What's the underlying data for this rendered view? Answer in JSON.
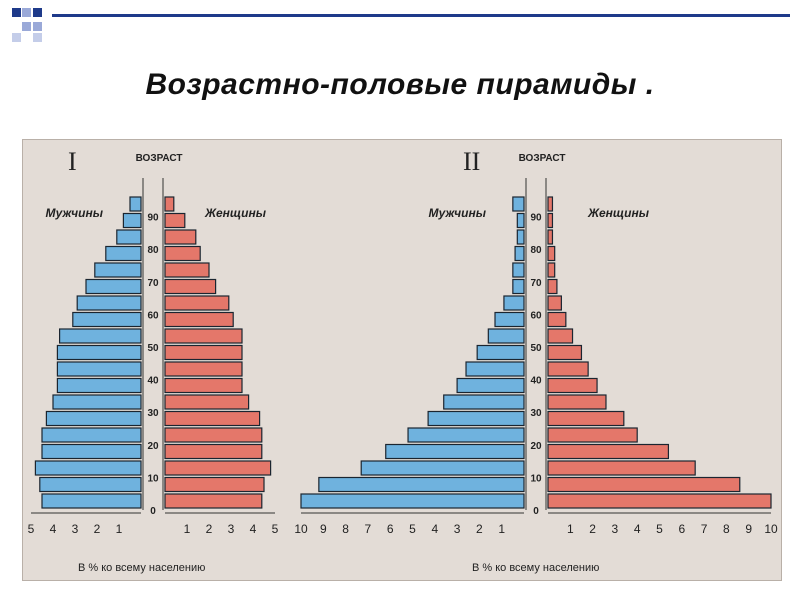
{
  "slide": {
    "title": "Возрастно-половые пирамиды .",
    "accent_colors": [
      "#1e3a8a",
      "#8fa3d6"
    ]
  },
  "chart_data": [
    {
      "type": "bar",
      "title": "I",
      "orientation": "horizontal-pyramid",
      "age_axis_label": "ВОЗРАСТ",
      "age_ticks": [
        "0",
        "10",
        "20",
        "30",
        "40",
        "50",
        "60",
        "70",
        "80",
        "90"
      ],
      "x_ticks_left": [
        "5",
        "4",
        "3",
        "2",
        "1"
      ],
      "x_ticks_right": [
        "1",
        "2",
        "3",
        "4",
        "5"
      ],
      "xlabel": "В % ко всему населению",
      "xlim": [
        0,
        5
      ],
      "series": [
        {
          "name": "Мужчины",
          "color": "#6fb2de",
          "values": [
            4.5,
            4.6,
            4.8,
            4.5,
            4.5,
            4.3,
            4.0,
            3.8,
            3.8,
            3.8,
            3.7,
            3.1,
            2.9,
            2.5,
            2.1,
            1.6,
            1.1,
            0.8,
            0.5
          ]
        },
        {
          "name": "Женщины",
          "color": "#e4776a",
          "values": [
            4.4,
            4.5,
            4.8,
            4.4,
            4.4,
            4.3,
            3.8,
            3.5,
            3.5,
            3.5,
            3.5,
            3.1,
            2.9,
            2.3,
            2.0,
            1.6,
            1.4,
            0.9,
            0.4
          ]
        }
      ]
    },
    {
      "type": "bar",
      "title": "II",
      "orientation": "horizontal-pyramid",
      "age_axis_label": "ВОЗРАСТ",
      "age_ticks": [
        "0",
        "10",
        "20",
        "30",
        "40",
        "50",
        "60",
        "70",
        "80",
        "90"
      ],
      "x_ticks_left": [
        "10",
        "9",
        "8",
        "7",
        "6",
        "5",
        "4",
        "3",
        "2",
        "1"
      ],
      "x_ticks_right": [
        "1",
        "2",
        "3",
        "4",
        "5",
        "6",
        "7",
        "8",
        "9",
        "10"
      ],
      "xlabel": "В % ко всему населению",
      "xlim": [
        0,
        10
      ],
      "series": [
        {
          "name": "Мужчины",
          "color": "#6fb2de",
          "values": [
            10.0,
            9.2,
            7.3,
            6.2,
            5.2,
            4.3,
            3.6,
            3.0,
            2.6,
            2.1,
            1.6,
            1.3,
            0.9,
            0.5,
            0.5,
            0.4,
            0.3,
            0.3,
            0.5
          ]
        },
        {
          "name": "Женщины",
          "color": "#e4776a",
          "values": [
            10.0,
            8.6,
            6.6,
            5.4,
            4.0,
            3.4,
            2.6,
            2.2,
            1.8,
            1.5,
            1.1,
            0.8,
            0.6,
            0.4,
            0.3,
            0.3,
            0.2,
            0.2,
            0.2
          ]
        }
      ]
    }
  ]
}
